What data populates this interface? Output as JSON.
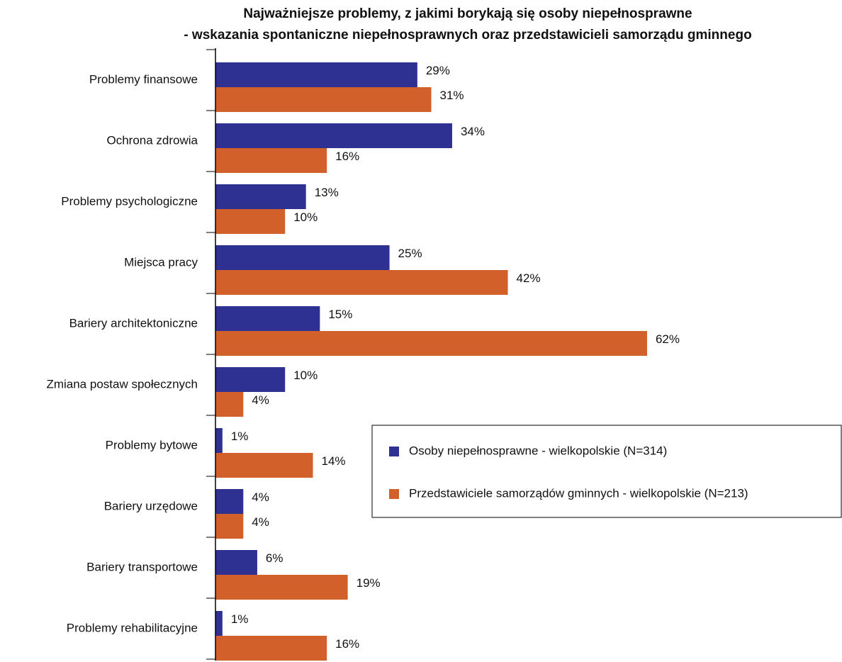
{
  "chart_data": {
    "type": "hbar",
    "title": [
      "Najważniejsze problemy, z jakimi borykają się osoby niepełnosprawne",
      "- wskazania spontaniczne niepełnosprawnych oraz przedstawicieli samorządu gminnego"
    ],
    "categories": [
      "Problemy finansowe",
      "Ochrona zdrowia",
      "Problemy psychologiczne",
      "Miejsca pracy",
      "Bariery architektoniczne",
      "Zmiana postaw społecznych",
      "Problemy bytowe",
      "Bariery urzędowe",
      "Bariery transportowe",
      "Problemy rehabilitacyjne"
    ],
    "series": [
      {
        "name": "Osoby niepełnosprawne - wielkopolskie (N=314)",
        "color": "#2e3192",
        "values": [
          29,
          34,
          13,
          25,
          15,
          10,
          1,
          4,
          6,
          1
        ],
        "value_labels": [
          "29%",
          "34%",
          "13%",
          "25%",
          "15%",
          "10%",
          "1%",
          "4%",
          "6%",
          "1%"
        ]
      },
      {
        "name": "Przedstawiciele samorządów gminnych - wielkopolskie (N=213)",
        "color": "#d2602a",
        "values": [
          31,
          16,
          10,
          42,
          62,
          4,
          14,
          4,
          19,
          16
        ],
        "value_labels": [
          "31%",
          "16%",
          "10%",
          "42%",
          "62%",
          "4%",
          "14%",
          "4%",
          "19%",
          "16%"
        ]
      }
    ],
    "xlim": [
      0,
      90
    ]
  }
}
